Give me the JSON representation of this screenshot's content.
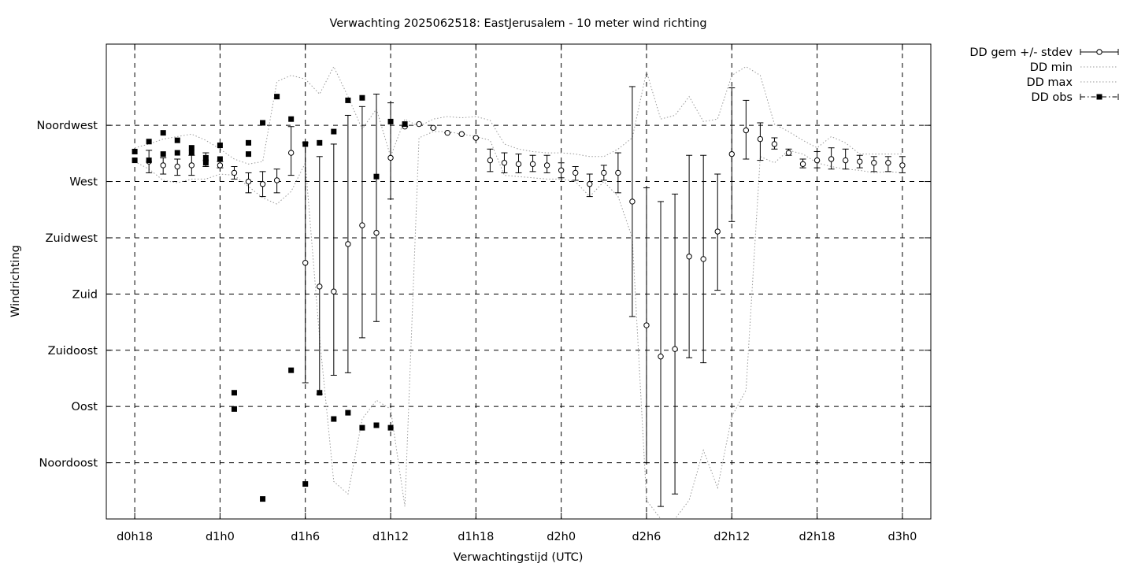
{
  "chart_data": {
    "type": "scatter",
    "title": "Verwachting 2025062518: EastJerusalem - 10 meter wind richting",
    "xlabel": "Verwachtingstijd (UTC)",
    "ylabel": "Windrichting",
    "x_unit": "hours since d0h18",
    "xlim": [
      -2,
      56
    ],
    "ylim": [
      0,
      380
    ],
    "grid": true,
    "legend_position": "outside-right",
    "x_ticks": [
      {
        "value": 0,
        "label": "d0h18"
      },
      {
        "value": 6,
        "label": "d1h0"
      },
      {
        "value": 12,
        "label": "d1h6"
      },
      {
        "value": 18,
        "label": "d1h12"
      },
      {
        "value": 24,
        "label": "d1h18"
      },
      {
        "value": 30,
        "label": "d2h0"
      },
      {
        "value": 36,
        "label": "d2h6"
      },
      {
        "value": 42,
        "label": "d2h12"
      },
      {
        "value": 48,
        "label": "d2h18"
      },
      {
        "value": 54,
        "label": "d3h0"
      }
    ],
    "y_ticks": [
      {
        "value": 45,
        "label": "Noordoost"
      },
      {
        "value": 90,
        "label": "Oost"
      },
      {
        "value": 135,
        "label": "Zuidoost"
      },
      {
        "value": 180,
        "label": "Zuid"
      },
      {
        "value": 225,
        "label": "Zuidwest"
      },
      {
        "value": 270,
        "label": "West"
      },
      {
        "value": 315,
        "label": "Noordwest"
      }
    ],
    "legend": [
      {
        "label": "DD gem +/- stdev",
        "style": "errorbar-open-circle"
      },
      {
        "label": "DD min",
        "style": "dotted"
      },
      {
        "label": "DD max",
        "style": "dotted"
      },
      {
        "label": "DD obs",
        "style": "filled-square-dashdot"
      }
    ],
    "series": [
      {
        "name": "DD gem +/- stdev",
        "x": [
          1,
          2,
          3,
          4,
          5,
          6,
          7,
          8,
          9,
          10,
          11,
          12,
          13,
          14,
          15,
          16,
          17,
          18,
          19,
          20,
          21,
          22,
          23,
          24,
          25,
          26,
          27,
          28,
          29,
          30,
          31,
          32,
          33,
          34,
          35,
          36,
          37,
          38,
          39,
          40,
          41,
          42,
          43,
          44,
          45,
          46,
          47,
          48,
          49,
          50,
          51,
          52,
          53,
          54
        ],
        "mean": [
          286,
          283,
          282,
          283,
          287,
          283,
          277,
          270,
          268,
          271,
          293,
          205,
          186,
          182,
          220,
          235,
          229,
          289,
          314,
          316,
          313,
          309,
          308,
          305,
          287,
          285,
          284,
          284,
          283,
          279,
          277,
          268,
          277,
          277,
          254,
          155,
          130,
          136,
          210,
          208,
          230,
          292,
          311,
          304,
          300,
          293,
          284,
          287,
          288,
          287,
          286,
          285,
          285,
          283
        ],
        "low": [
          277,
          276,
          275,
          275,
          282,
          281,
          272,
          261,
          258,
          261,
          275,
          109,
          100,
          115,
          117,
          145,
          158,
          256,
          314,
          316,
          313,
          309,
          308,
          305,
          278,
          277,
          277,
          278,
          277,
          273,
          271,
          258,
          271,
          261,
          162,
          45,
          10,
          20,
          129,
          125,
          183,
          238,
          288,
          287,
          296,
          291,
          281,
          281,
          280,
          280,
          281,
          278,
          278,
          277
        ],
        "high": [
          295,
          289,
          288,
          291,
          293,
          286,
          282,
          277,
          278,
          280,
          314,
          301,
          290,
          300,
          323,
          330,
          340,
          333,
          314,
          316,
          313,
          309,
          308,
          305,
          296,
          293,
          292,
          291,
          291,
          285,
          282,
          276,
          283,
          293,
          346,
          265,
          254,
          260,
          291,
          291,
          276,
          345,
          335,
          317,
          305,
          296,
          288,
          294,
          297,
          296,
          291,
          290,
          290,
          290
        ]
      },
      {
        "name": "DD min",
        "x": [
          0,
          1,
          2,
          3,
          4,
          5,
          6,
          7,
          8,
          9,
          10,
          11,
          12,
          13,
          14,
          15,
          16,
          17,
          18,
          19,
          20,
          21,
          22,
          23,
          24,
          25,
          26,
          27,
          28,
          29,
          30,
          31,
          32,
          33,
          34,
          35,
          36,
          37,
          38,
          39,
          40,
          41,
          42,
          43,
          44,
          45,
          46,
          47,
          48,
          49,
          50,
          51,
          52,
          53,
          54
        ],
        "values": [
          286,
          280,
          271,
          269,
          272,
          272,
          276,
          275,
          266,
          257,
          252,
          262,
          285,
          145,
          30,
          20,
          80,
          95,
          88,
          10,
          305,
          310,
          310,
          308,
          306,
          303,
          275,
          274,
          273,
          272,
          272,
          270,
          258,
          270,
          258,
          225,
          15,
          0,
          0,
          15,
          55,
          25,
          82,
          103,
          290,
          285,
          295,
          292,
          285,
          282,
          280,
          279,
          277,
          278,
          277
        ]
      },
      {
        "name": "DD max",
        "x": [
          0,
          1,
          2,
          3,
          4,
          5,
          6,
          7,
          8,
          9,
          10,
          11,
          12,
          13,
          14,
          15,
          16,
          17,
          18,
          19,
          20,
          21,
          22,
          23,
          24,
          25,
          26,
          27,
          28,
          29,
          30,
          31,
          32,
          33,
          34,
          35,
          36,
          37,
          38,
          39,
          40,
          41,
          42,
          43,
          44,
          45,
          46,
          47,
          48,
          49,
          50,
          51,
          52,
          53,
          54
        ],
        "values": [
          297,
          300,
          304,
          306,
          308,
          303,
          296,
          288,
          284,
          286,
          350,
          355,
          352,
          340,
          362,
          338,
          312,
          328,
          290,
          320,
          314,
          320,
          322,
          321,
          322,
          319,
          300,
          296,
          294,
          293,
          293,
          292,
          290,
          290,
          296,
          305,
          358,
          320,
          323,
          338,
          318,
          320,
          355,
          362,
          355,
          316,
          310,
          303,
          297,
          306,
          301,
          292,
          292,
          292,
          292
        ]
      },
      {
        "name": "DD obs",
        "x": [
          0,
          0,
          1,
          1,
          2,
          2,
          3,
          3,
          4,
          4,
          5,
          5,
          6,
          6,
          7,
          7,
          8,
          8,
          9,
          9,
          10,
          11,
          11,
          12,
          12,
          13,
          13,
          14,
          14,
          15,
          15,
          16,
          16,
          17,
          17,
          18,
          18,
          19
        ],
        "values": [
          294,
          287,
          287,
          302,
          309,
          292,
          303,
          293,
          297,
          293,
          285,
          289,
          299,
          288,
          101,
          88,
          301,
          292,
          16,
          317,
          338,
          119,
          320,
          300,
          28,
          301,
          101,
          310,
          80,
          335,
          85,
          337,
          73,
          274,
          75,
          318,
          73,
          316
        ]
      }
    ]
  }
}
